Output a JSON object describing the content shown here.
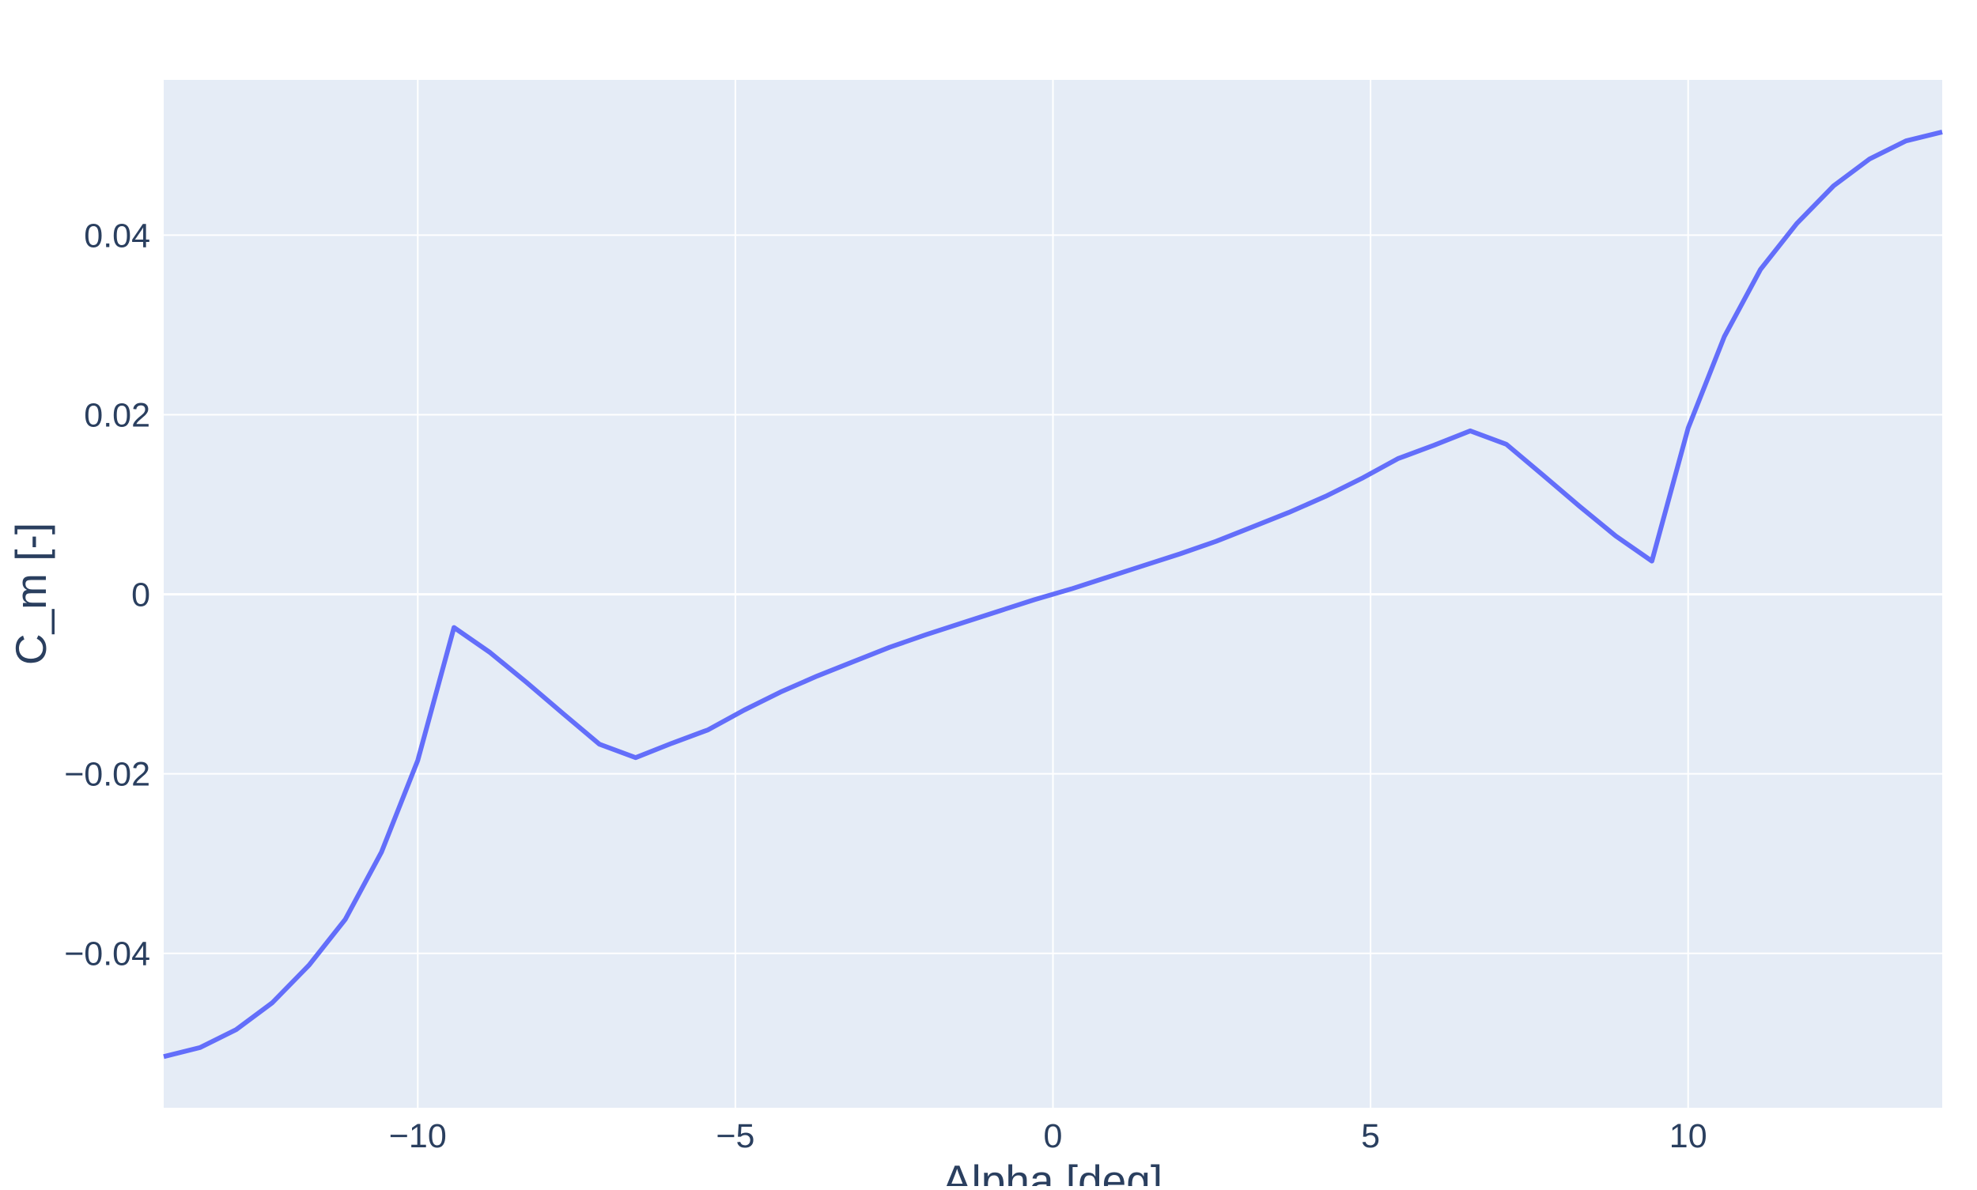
{
  "chart_data": {
    "type": "line",
    "title": "",
    "xlabel": "Alpha [deg]",
    "ylabel": "C_m [-]",
    "xlim": [
      -14,
      14
    ],
    "ylim": [
      -0.0572,
      0.0573
    ],
    "xticks": [
      -10,
      -5,
      0,
      5,
      10
    ],
    "xtick_labels": [
      "−10",
      "−5",
      "0",
      "5",
      "10"
    ],
    "yticks": [
      -0.04,
      -0.02,
      0,
      0.02,
      0.04
    ],
    "ytick_labels": [
      "−0.04",
      "−0.02",
      "0",
      "0.02",
      "0.04"
    ],
    "grid": true,
    "colors": {
      "plot_bg": "#e5ecf6",
      "grid": "#ffffff",
      "line": "#636efa",
      "text": "#2a3f5f"
    },
    "series": [
      {
        "x": [
          -14.0,
          -13.43,
          -12.86,
          -12.29,
          -11.71,
          -11.14,
          -10.57,
          -10.0,
          -9.43,
          -8.86,
          -8.29,
          -7.71,
          -7.14,
          -6.57,
          -6.0,
          -5.43,
          -4.86,
          -4.29,
          -3.71,
          -3.14,
          -2.57,
          -2.0,
          -1.43,
          -0.86,
          -0.29,
          0.29,
          0.86,
          1.43,
          2.0,
          2.57,
          3.14,
          3.71,
          4.29,
          4.86,
          5.43,
          6.0,
          6.57,
          7.14,
          7.71,
          8.29,
          8.86,
          9.43,
          10.0,
          10.57,
          11.14,
          11.71,
          12.29,
          12.86,
          13.43,
          14.0
        ],
        "y": [
          -0.0515,
          -0.0505,
          -0.0485,
          -0.0455,
          -0.0413,
          -0.0362,
          -0.0287,
          -0.0185,
          -0.0037,
          -0.0065,
          -0.0098,
          -0.0133,
          -0.0167,
          -0.0182,
          -0.0166,
          -0.0151,
          -0.0129,
          -0.0109,
          -0.0091,
          -0.0075,
          -0.0059,
          -0.0045,
          -0.0032,
          -0.0019,
          -0.0006,
          0.0006,
          0.0019,
          0.0032,
          0.0045,
          0.0059,
          0.0075,
          0.0091,
          0.0109,
          0.0129,
          0.0151,
          0.0166,
          0.0182,
          0.0167,
          0.0133,
          0.0098,
          0.0065,
          0.0037,
          0.0185,
          0.0287,
          0.0362,
          0.0413,
          0.0455,
          0.0485,
          0.0505,
          0.0515
        ]
      }
    ]
  }
}
